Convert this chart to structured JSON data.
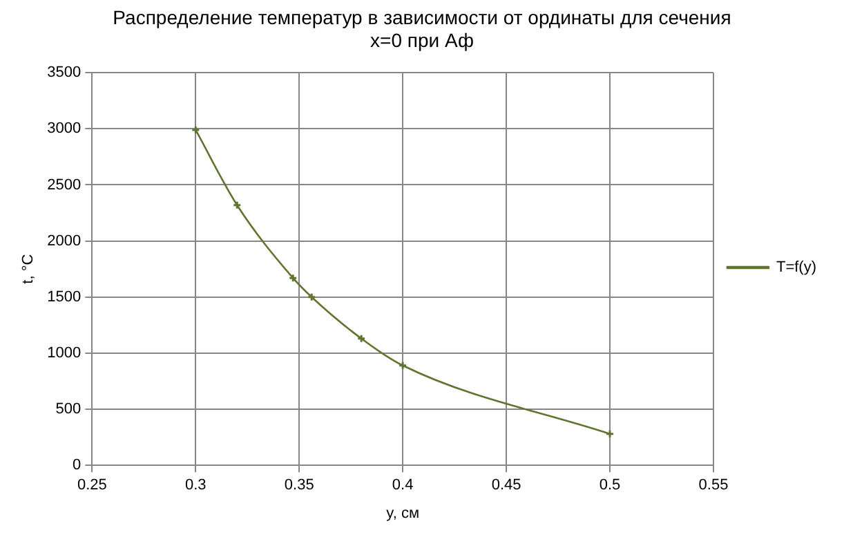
{
  "chart_data": {
    "type": "line",
    "title": "Распределение температур в зависимости от ординаты для сечения\nx=0 при Аф",
    "xlabel": "y, см",
    "ylabel": "t, °C",
    "series": [
      {
        "name": "T=f(y)",
        "color": "#5f7530",
        "x": [
          0.3,
          0.32,
          0.347,
          0.356,
          0.38,
          0.4,
          0.5
        ],
        "values": [
          2990,
          2320,
          1670,
          1500,
          1130,
          890,
          280
        ]
      }
    ],
    "xlim": [
      0.25,
      0.55
    ],
    "xticks": [
      0.25,
      0.3,
      0.35,
      0.4,
      0.45,
      0.5,
      0.55
    ],
    "ylim": [
      0,
      3500
    ],
    "yticks": [
      0,
      500,
      1000,
      1500,
      2000,
      2500,
      3000,
      3500
    ],
    "grid": true,
    "legend": "right",
    "marker": "cross",
    "line_style": "solid"
  }
}
